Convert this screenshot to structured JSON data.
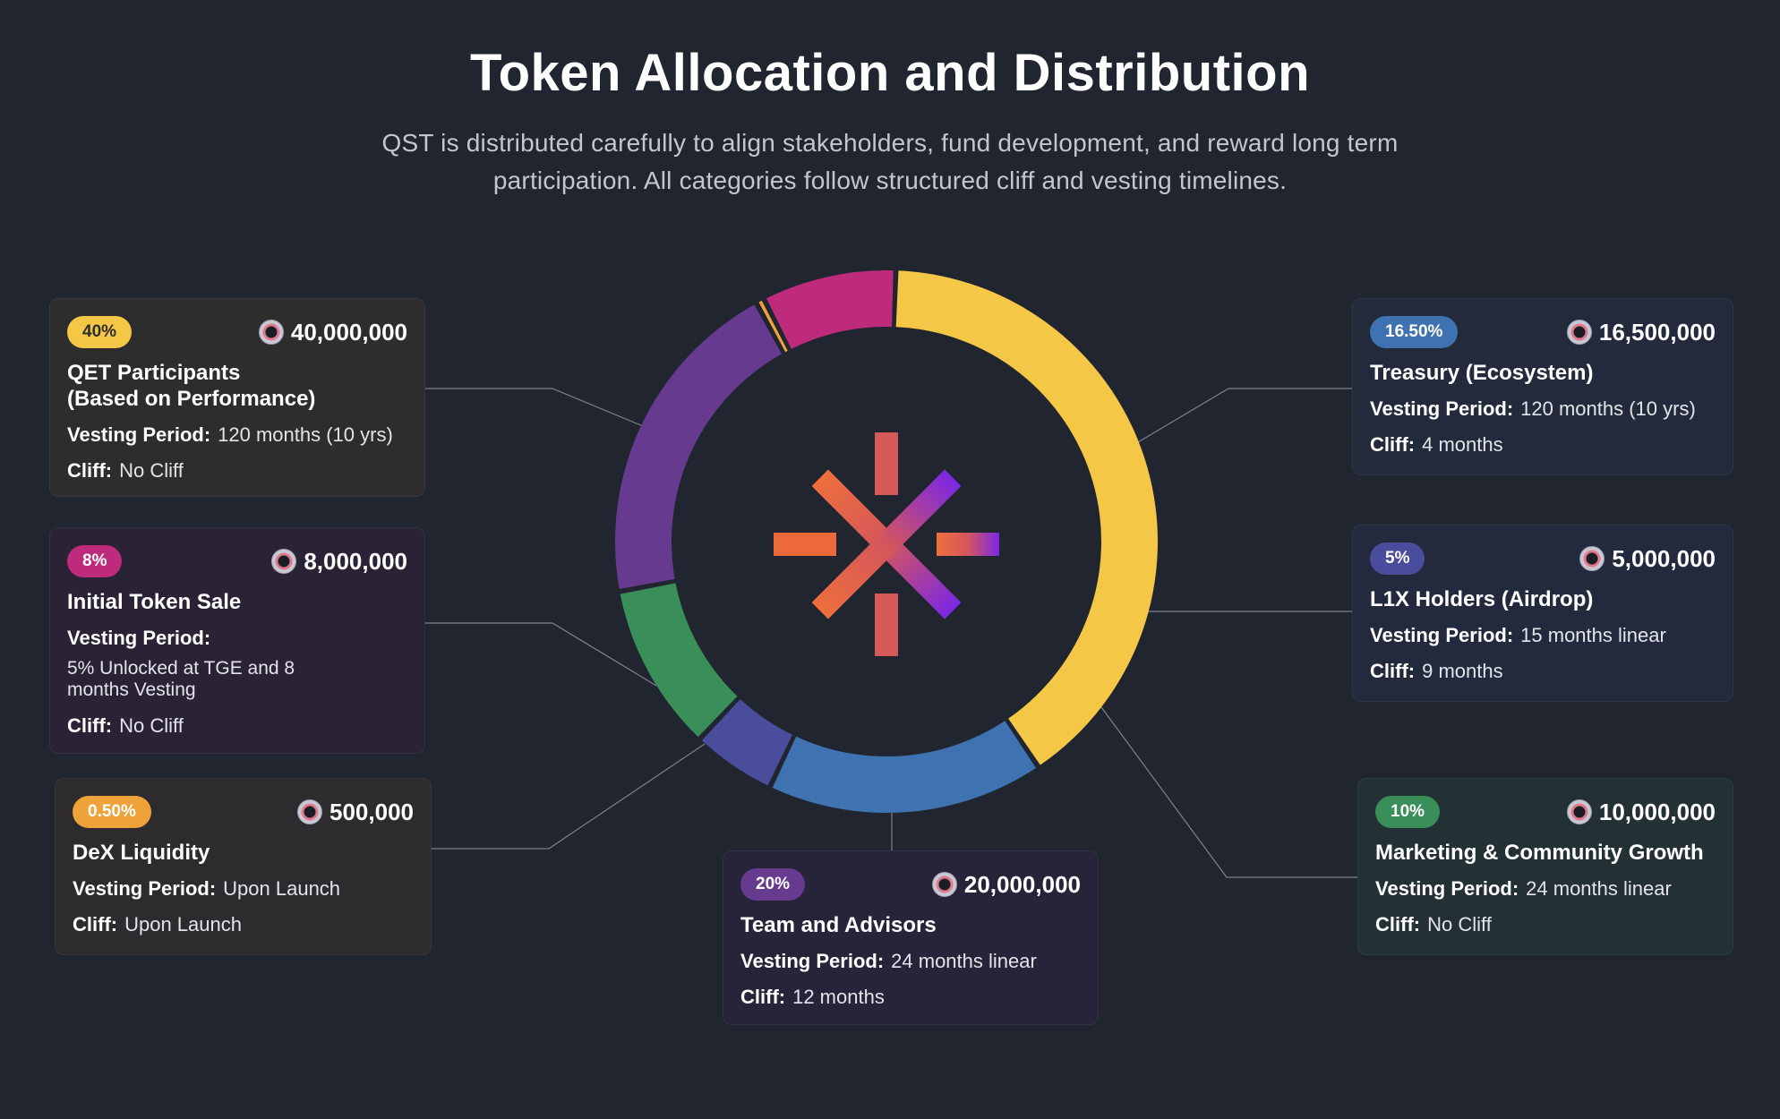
{
  "header": {
    "title": "Token Allocation and Distribution",
    "subtitle": "QST is distributed carefully to align stakeholders, fund development, and reward long term participation. All categories follow structured cliff and vesting timelines."
  },
  "labels": {
    "vesting": "Vesting Period:",
    "cliff": "Cliff:"
  },
  "chart_data": {
    "type": "pie",
    "donut": true,
    "title": "Token Allocation and Distribution",
    "categories": [
      "QET Participants (Based on Performance)",
      "Treasury (Ecosystem)",
      "L1X Holders (Airdrop)",
      "Marketing & Community Growth",
      "Team and Advisors",
      "DeX Liquidity",
      "Initial Token Sale"
    ],
    "values": [
      40,
      16.5,
      5,
      10,
      20,
      0.5,
      8
    ],
    "colors": [
      "#f5c747",
      "#3f72b1",
      "#4a4d9c",
      "#3a8e59",
      "#663a8f",
      "#f0a23a",
      "#be2b7c"
    ]
  },
  "allocations": [
    {
      "key": "qet",
      "percent": "40%",
      "amount": "40,000,000",
      "name": "QET Participants\n(Based on Performance)",
      "vesting": "120 months (10 yrs)",
      "cliff": "No Cliff",
      "color": "#f5c747",
      "card_bg": "#2c2d2c"
    },
    {
      "key": "sale",
      "percent": "8%",
      "amount": "8,000,000",
      "name": "Initial Token Sale",
      "vesting": "5% Unlocked at TGE and 8 months Vesting",
      "cliff": "No Cliff",
      "color": "#be2b7c",
      "card_bg": "#2a2336"
    },
    {
      "key": "dex",
      "percent": "0.50%",
      "amount": "500,000",
      "name": "DeX Liquidity",
      "vesting": "Upon Launch",
      "cliff": "Upon Launch",
      "color": "#f0a23a",
      "card_bg": "#2d2b2d"
    },
    {
      "key": "team",
      "percent": "20%",
      "amount": "20,000,000",
      "name": "Team and Advisors",
      "vesting": "24 months linear",
      "cliff": "12 months",
      "color": "#663a8f",
      "card_bg": "#27243a"
    },
    {
      "key": "treasury",
      "percent": "16.50%",
      "amount": "16,500,000",
      "name": "Treasury (Ecosystem)",
      "vesting": "120 months (10 yrs)",
      "cliff": "4 months",
      "color": "#3f72b1",
      "card_bg": "#222a3b"
    },
    {
      "key": "airdrop",
      "percent": "5%",
      "amount": "5,000,000",
      "name": "L1X Holders (Airdrop)",
      "vesting": "15 months linear",
      "cliff": "9 months",
      "color": "#4a4d9c",
      "card_bg": "#242a3d"
    },
    {
      "key": "marketing",
      "percent": "10%",
      "amount": "10,000,000",
      "name": "Marketing & Community Growth",
      "vesting": "24 months linear",
      "cliff": "No Cliff",
      "color": "#3a8e59",
      "card_bg": "#233034"
    }
  ]
}
